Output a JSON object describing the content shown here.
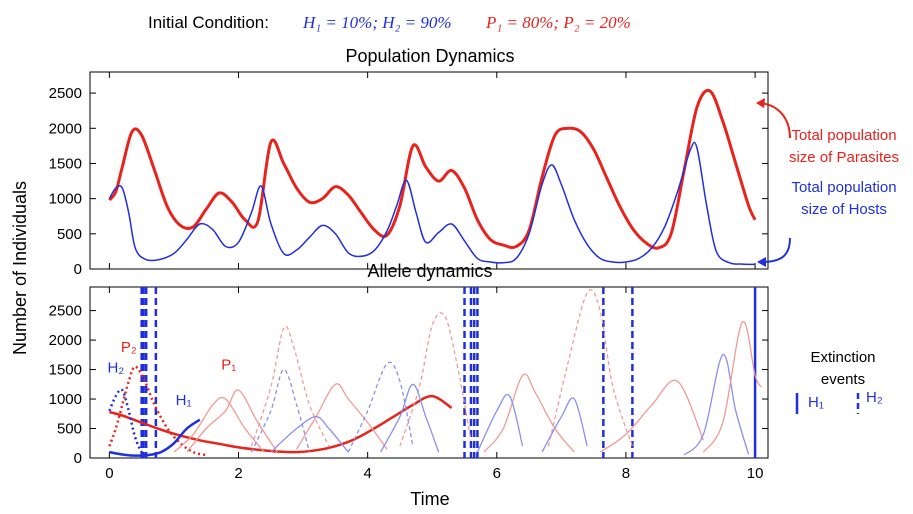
{
  "figure": {
    "initial_condition": {
      "prefix": "Initial Condition:",
      "hosts_text": "H₁ = 10%; H₂ = 90%",
      "parasites_text": "P₁ = 80%; P₂ = 20%"
    },
    "colors": {
      "host": "#1f2fdd",
      "parasite": "#e8231c",
      "host_light": "#8a90ee",
      "parasite_light": "#f09a96"
    }
  },
  "chart_data": [
    {
      "type": "line",
      "title": "Population Dynamics",
      "xlabel": "Time",
      "ylabel": "Number of Individuals",
      "xlim": [
        -0.3,
        10.2
      ],
      "ylim": [
        0,
        2800
      ],
      "xticks": [
        0,
        2,
        4,
        6,
        8,
        10
      ],
      "yticks": [
        0,
        500,
        1000,
        1500,
        2000,
        2500
      ],
      "series": [
        {
          "name": "Total population size of Parasites",
          "color": "#e8231c",
          "x": [
            0,
            0.1,
            0.2,
            0.35,
            0.5,
            0.7,
            0.9,
            1.1,
            1.3,
            1.5,
            1.7,
            1.9,
            2.1,
            2.3,
            2.5,
            2.7,
            2.9,
            3.1,
            3.3,
            3.5,
            3.7,
            3.9,
            4.1,
            4.3,
            4.5,
            4.7,
            4.9,
            5.1,
            5.3,
            5.5,
            5.7,
            5.9,
            6.1,
            6.3,
            6.5,
            6.7,
            6.9,
            7.1,
            7.3,
            7.5,
            7.7,
            7.9,
            8.1,
            8.3,
            8.5,
            8.7,
            8.9,
            9.1,
            9.3,
            9.5,
            9.7,
            9.9,
            10.0
          ],
          "y": [
            980,
            1100,
            1450,
            1950,
            1900,
            1400,
            880,
            620,
            600,
            850,
            1080,
            950,
            700,
            680,
            1800,
            1500,
            1150,
            950,
            1000,
            1170,
            1050,
            800,
            560,
            480,
            900,
            1750,
            1450,
            1250,
            1400,
            1150,
            700,
            420,
            340,
            320,
            550,
            1300,
            1900,
            2000,
            1950,
            1700,
            1300,
            900,
            580,
            380,
            300,
            500,
            1400,
            2300,
            2530,
            2100,
            1500,
            900,
            700
          ]
        },
        {
          "name": "Total population size of Hosts",
          "color": "#1f2fdd",
          "x": [
            0,
            0.1,
            0.2,
            0.3,
            0.4,
            0.55,
            0.75,
            1.0,
            1.2,
            1.4,
            1.6,
            1.8,
            2.0,
            2.2,
            2.35,
            2.5,
            2.7,
            2.9,
            3.1,
            3.3,
            3.5,
            3.7,
            3.9,
            4.1,
            4.3,
            4.45,
            4.6,
            4.75,
            4.9,
            5.1,
            5.3,
            5.5,
            5.7,
            5.9,
            6.1,
            6.3,
            6.5,
            6.7,
            6.85,
            7.0,
            7.2,
            7.4,
            7.6,
            7.8,
            8.0,
            8.2,
            8.4,
            8.6,
            8.8,
            9.0,
            9.1,
            9.25,
            9.4,
            9.6,
            9.8,
            10.0
          ],
          "y": [
            1000,
            1150,
            1150,
            800,
            300,
            140,
            130,
            220,
            420,
            640,
            560,
            320,
            380,
            800,
            1180,
            650,
            220,
            270,
            450,
            620,
            500,
            230,
            180,
            260,
            540,
            900,
            1260,
            800,
            380,
            520,
            640,
            400,
            150,
            100,
            90,
            150,
            500,
            1200,
            1480,
            1200,
            700,
            350,
            150,
            100,
            100,
            150,
            300,
            600,
            1100,
            1700,
            1720,
            900,
            250,
            90,
            70,
            65
          ]
        }
      ],
      "legend": [
        {
          "line1": "Total population",
          "line2": "size of Parasites",
          "color": "#e8231c"
        },
        {
          "line1": "Total population",
          "line2": "size of Hosts",
          "color": "#1f2fdd"
        }
      ]
    },
    {
      "type": "line",
      "title": "Allele dynamics",
      "xlabel": "Time",
      "ylabel": "Number of Individuals",
      "xlim": [
        -0.3,
        10.2
      ],
      "ylim": [
        0,
        2900
      ],
      "xticks": [
        0,
        2,
        4,
        6,
        8,
        10
      ],
      "yticks": [
        0,
        500,
        1000,
        1500,
        2000,
        2500
      ],
      "curve_labels": [
        {
          "label": "P₂",
          "x": 0.3,
          "y": 1800,
          "color": "#e8231c"
        },
        {
          "label": "H₂",
          "x": 0.1,
          "y": 1450,
          "color": "#1f2fdd"
        },
        {
          "label": "P₁",
          "x": 1.85,
          "y": 1500,
          "color": "#e8231c"
        },
        {
          "label": "H₁",
          "x": 1.15,
          "y": 900,
          "color": "#1f2fdd"
        }
      ],
      "extinction_events": {
        "solid_H1": [
          10.0
        ],
        "dashed_H2": [
          0.5,
          0.53,
          0.57,
          0.72,
          5.5,
          5.6,
          5.65,
          5.7,
          7.65,
          8.1
        ],
        "legend_title_line1": "Extinction",
        "legend_title_line2": "events",
        "legend_h1": "H₁",
        "legend_h2": "H₂"
      },
      "series": [
        {
          "kind": "P1",
          "style": "solid",
          "emph": true,
          "x": [
            0,
            0.2,
            0.5,
            0.8,
            1.1,
            1.4,
            1.7,
            2.0,
            2.3,
            2.6,
            2.9,
            3.2,
            3.5,
            3.8,
            4.1,
            4.4,
            4.7,
            5.0,
            5.3
          ],
          "y": [
            780,
            720,
            600,
            480,
            380,
            300,
            240,
            180,
            140,
            110,
            100,
            130,
            200,
            320,
            500,
            700,
            900,
            1050,
            850
          ]
        },
        {
          "kind": "P2",
          "style": "dotted",
          "emph": true,
          "x": [
            0,
            0.1,
            0.2,
            0.3,
            0.4,
            0.55,
            0.7,
            0.9,
            1.1,
            1.3,
            1.5
          ],
          "y": [
            200,
            500,
            900,
            1300,
            1550,
            1300,
            900,
            500,
            250,
            100,
            50
          ]
        },
        {
          "kind": "H2",
          "style": "dotted",
          "emph": true,
          "x": [
            0,
            0.1,
            0.2,
            0.3,
            0.4,
            0.5,
            0.6
          ],
          "y": [
            800,
            1050,
            1150,
            800,
            350,
            100,
            20
          ]
        },
        {
          "kind": "H1",
          "style": "solid",
          "emph": true,
          "x": [
            0,
            0.2,
            0.4,
            0.6,
            0.8,
            1.0,
            1.2,
            1.4
          ],
          "y": [
            100,
            60,
            40,
            50,
            100,
            250,
            500,
            650
          ]
        },
        {
          "kind": "P1",
          "style": "solid",
          "emph": false,
          "x": [
            1.0,
            1.3,
            1.6,
            1.8,
            2.1,
            2.4
          ],
          "y": [
            100,
            400,
            900,
            1000,
            500,
            100
          ]
        },
        {
          "kind": "P1",
          "style": "solid",
          "emph": false,
          "x": [
            1.2,
            1.5,
            1.8,
            2.0,
            2.3,
            2.6
          ],
          "y": [
            100,
            500,
            800,
            1150,
            600,
            100
          ]
        },
        {
          "kind": "P2",
          "style": "dashed",
          "emph": false,
          "x": [
            2.2,
            2.5,
            2.7,
            2.85,
            3.1,
            3.4
          ],
          "y": [
            200,
            1200,
            2200,
            1900,
            900,
            200
          ]
        },
        {
          "kind": "P1",
          "style": "solid",
          "emph": false,
          "x": [
            2.9,
            3.2,
            3.5,
            3.7,
            4.0,
            4.3
          ],
          "y": [
            150,
            700,
            1250,
            1000,
            600,
            150
          ]
        },
        {
          "kind": "H2",
          "style": "dashed",
          "emph": false,
          "x": [
            2.2,
            2.5,
            2.7,
            2.9,
            3.1
          ],
          "y": [
            100,
            800,
            1500,
            900,
            100
          ]
        },
        {
          "kind": "H1",
          "style": "solid",
          "emph": false,
          "x": [
            2.5,
            2.9,
            3.2,
            3.4,
            3.7
          ],
          "y": [
            100,
            500,
            700,
            500,
            100
          ]
        },
        {
          "kind": "H2",
          "style": "dashed",
          "emph": false,
          "x": [
            3.7,
            4.0,
            4.3,
            4.5,
            4.7
          ],
          "y": [
            100,
            800,
            1600,
            1300,
            200
          ]
        },
        {
          "kind": "P2",
          "style": "dashed",
          "emph": false,
          "x": [
            4.5,
            4.8,
            5.0,
            5.2,
            5.4,
            5.6
          ],
          "y": [
            200,
            1200,
            2250,
            2400,
            1500,
            300
          ]
        },
        {
          "kind": "H1",
          "style": "solid",
          "emph": false,
          "x": [
            4.2,
            4.5,
            4.7,
            4.9,
            5.1
          ],
          "y": [
            100,
            700,
            1250,
            700,
            100
          ]
        },
        {
          "kind": "P1",
          "style": "solid",
          "emph": false,
          "x": [
            5.8,
            6.1,
            6.4,
            6.6,
            6.9,
            7.2
          ],
          "y": [
            100,
            500,
            1400,
            1100,
            500,
            100
          ]
        },
        {
          "kind": "H1",
          "style": "solid",
          "emph": false,
          "x": [
            5.7,
            6.0,
            6.2,
            6.4
          ],
          "y": [
            100,
            800,
            1050,
            200
          ]
        },
        {
          "kind": "P2",
          "style": "dashed",
          "emph": false,
          "x": [
            6.8,
            7.1,
            7.4,
            7.6,
            7.8,
            8.1
          ],
          "y": [
            200,
            1600,
            2800,
            2500,
            1200,
            200
          ]
        },
        {
          "kind": "H1",
          "style": "solid",
          "emph": false,
          "x": [
            6.7,
            7.0,
            7.2,
            7.4
          ],
          "y": [
            100,
            700,
            1000,
            200
          ]
        },
        {
          "kind": "P1",
          "style": "solid",
          "emph": false,
          "x": [
            7.6,
            8.0,
            8.4,
            8.8,
            9.2
          ],
          "y": [
            100,
            400,
            900,
            1300,
            300
          ]
        },
        {
          "kind": "H1",
          "style": "solid",
          "emph": false,
          "x": [
            8.9,
            9.2,
            9.5,
            9.7,
            9.9
          ],
          "y": [
            50,
            400,
            1750,
            800,
            60
          ]
        },
        {
          "kind": "P1",
          "style": "solid",
          "emph": false,
          "x": [
            9.2,
            9.5,
            9.8,
            10.0,
            10.1
          ],
          "y": [
            100,
            600,
            2300,
            1400,
            1200
          ]
        }
      ]
    }
  ]
}
